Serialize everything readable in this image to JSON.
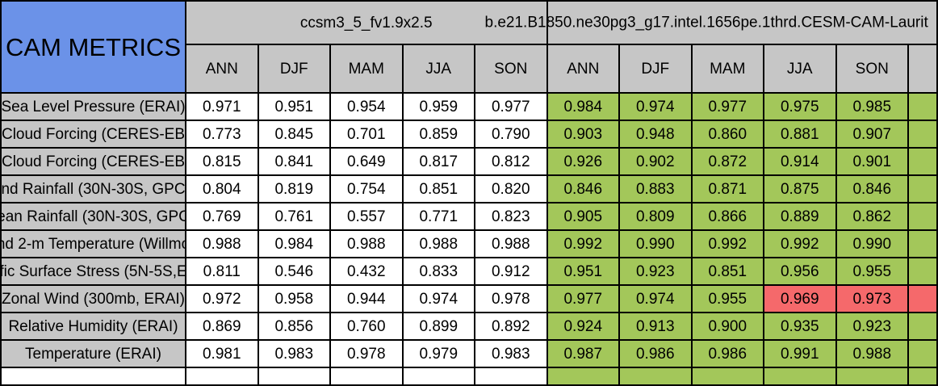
{
  "title": "CAM METRICS",
  "groups": [
    {
      "name": "ccsm3_5_fv1.9x2.5",
      "columns": [
        "ANN",
        "DJF",
        "MAM",
        "JJA",
        "SON"
      ]
    },
    {
      "name": "b.e21.B1850.ne30pg3_g17.intel.1656pe.1thrd.CESM-CAM-Laurit",
      "columns": [
        "ANN",
        "DJF",
        "MAM",
        "JJA",
        "SON"
      ]
    }
  ],
  "colors": {
    "header_blue": "#6B92E8",
    "header_gray": "#C6C6C6",
    "good_green": "#A3C75A",
    "bad_red": "#F5696B",
    "border": "#000000",
    "cell_white": "#FFFFFF"
  },
  "rows": [
    {
      "label": "Sea Level Pressure (ERAI)",
      "ccsm": [
        "0.971",
        "0.951",
        "0.954",
        "0.959",
        "0.977"
      ],
      "cesm": [
        "0.984",
        "0.974",
        "0.977",
        "0.975",
        "0.985"
      ]
    },
    {
      "label": "Cloud Forcing (CERES-EB",
      "ccsm": [
        "0.773",
        "0.845",
        "0.701",
        "0.859",
        "0.790"
      ],
      "cesm": [
        "0.903",
        "0.948",
        "0.860",
        "0.881",
        "0.907"
      ]
    },
    {
      "label": "Cloud Forcing (CERES-EB",
      "ccsm": [
        "0.815",
        "0.841",
        "0.649",
        "0.817",
        "0.812"
      ],
      "cesm": [
        "0.926",
        "0.902",
        "0.872",
        "0.914",
        "0.901"
      ]
    },
    {
      "label": "nd Rainfall (30N-30S, GPC",
      "ccsm": [
        "0.804",
        "0.819",
        "0.754",
        "0.851",
        "0.820"
      ],
      "cesm": [
        "0.846",
        "0.883",
        "0.871",
        "0.875",
        "0.846"
      ]
    },
    {
      "label": "ean Rainfall (30N-30S, GPC",
      "ccsm": [
        "0.769",
        "0.761",
        "0.557",
        "0.771",
        "0.823"
      ],
      "cesm": [
        "0.905",
        "0.809",
        "0.866",
        "0.889",
        "0.862"
      ]
    },
    {
      "label": "nd 2-m Temperature (Willmo",
      "ccsm": [
        "0.988",
        "0.984",
        "0.988",
        "0.988",
        "0.988"
      ],
      "cesm": [
        "0.992",
        "0.990",
        "0.992",
        "0.992",
        "0.990"
      ]
    },
    {
      "label": "fic Surface Stress (5N-5S,E",
      "ccsm": [
        "0.811",
        "0.546",
        "0.432",
        "0.833",
        "0.912"
      ],
      "cesm": [
        "0.951",
        "0.923",
        "0.851",
        "0.956",
        "0.955"
      ]
    },
    {
      "label": "Zonal Wind (300mb, ERAI)",
      "ccsm": [
        "0.972",
        "0.958",
        "0.944",
        "0.974",
        "0.978"
      ],
      "cesm": [
        "0.977",
        "0.974",
        "0.955",
        "0.969",
        "0.973"
      ],
      "cesm_flags": [
        "green",
        "green",
        "green",
        "red",
        "red"
      ],
      "extra_flag": "red"
    },
    {
      "label": "Relative Humidity (ERAI)",
      "ccsm": [
        "0.869",
        "0.856",
        "0.760",
        "0.899",
        "0.892"
      ],
      "cesm": [
        "0.924",
        "0.913",
        "0.900",
        "0.935",
        "0.923"
      ]
    },
    {
      "label": "Temperature (ERAI)",
      "ccsm": [
        "0.981",
        "0.983",
        "0.978",
        "0.979",
        "0.983"
      ],
      "cesm": [
        "0.987",
        "0.986",
        "0.986",
        "0.991",
        "0.988"
      ]
    }
  ]
}
